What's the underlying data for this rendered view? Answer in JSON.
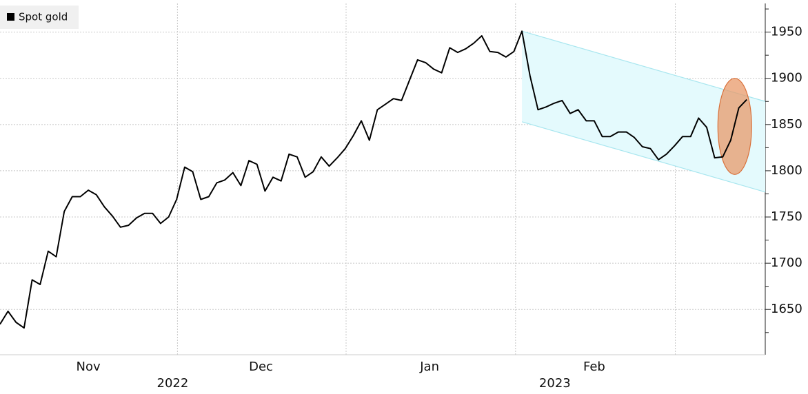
{
  "chart_data": {
    "type": "line",
    "legend": "Spot gold",
    "categories": [
      null,
      null,
      null,
      null,
      null,
      null,
      null,
      null,
      null,
      null,
      null,
      null,
      null,
      null,
      null,
      null,
      null,
      null,
      null,
      null,
      null,
      null,
      null,
      null,
      null,
      null,
      null,
      null,
      null,
      null,
      null,
      null,
      null,
      null,
      null,
      null,
      null,
      null,
      null,
      null,
      null,
      null,
      null,
      null,
      null,
      null,
      null,
      null,
      null,
      null,
      null,
      null,
      null,
      null,
      null,
      null,
      null,
      null,
      null,
      null,
      null,
      null,
      null,
      null,
      null,
      null,
      null,
      null,
      null,
      null,
      null,
      null,
      null,
      null,
      null,
      null,
      null,
      null,
      null,
      null,
      null,
      null,
      null,
      null,
      null,
      null,
      null,
      null,
      null,
      null,
      null,
      null,
      null,
      null
    ],
    "series": [
      {
        "name": "Spot gold",
        "color": "#000000",
        "values": [
          1634,
          1648,
          1636,
          1630,
          1682,
          1677,
          1713,
          1707,
          1756,
          1772,
          1772,
          1779,
          1774,
          1761,
          1751,
          1739,
          1741,
          1749,
          1754,
          1754,
          1743,
          1750,
          1769,
          1804,
          1799,
          1769,
          1772,
          1787,
          1790,
          1798,
          1784,
          1811,
          1807,
          1778,
          1793,
          1789,
          1818,
          1815,
          1793,
          1799,
          1815,
          1805,
          1814,
          1824,
          1838,
          1854,
          1833,
          1866,
          1872,
          1878,
          1876,
          1898,
          1920,
          1917,
          1910,
          1906,
          1933,
          1928,
          1932,
          1938,
          1946,
          1929,
          1928,
          1923,
          1929,
          1951,
          1903,
          1866,
          1869,
          1873,
          1876,
          1862,
          1866,
          1854,
          1854,
          1837,
          1837,
          1842,
          1842,
          1836,
          1826,
          1824,
          1812,
          1818,
          1827,
          1837,
          1837,
          1857,
          1847,
          1814,
          1815,
          1833,
          1868,
          1877
        ]
      }
    ],
    "xlim": [
      0,
      95.3
    ],
    "xticks": [
      {
        "value": 11,
        "label": "Nov"
      },
      {
        "value": 32.5,
        "label": "Dec"
      },
      {
        "value": 53.5,
        "label": "Jan"
      },
      {
        "value": 74,
        "label": "Feb"
      }
    ],
    "xgrid": [
      22.1,
      43.1,
      64.2,
      84.1
    ],
    "year_labels": [
      {
        "value": 21.5,
        "label": "2022"
      },
      {
        "value": 69.1,
        "label": "2023"
      }
    ],
    "ylim": [
      1601,
      1981
    ],
    "yticks": [
      1650,
      1700,
      1750,
      1800,
      1850,
      1900,
      1950
    ],
    "yminor_ticks": [
      1625,
      1675,
      1725,
      1775,
      1825,
      1875,
      1925,
      1975
    ],
    "grid": true,
    "channel": {
      "x": [
        65,
        95.3
      ],
      "upper": [
        1951,
        1875
      ],
      "lower": [
        1853,
        1777
      ],
      "color": "#e4fafd",
      "edge_color": "#a8e6ef"
    },
    "highlight": {
      "cx": 91.5,
      "cy": 1848,
      "rx": 2.1,
      "ry": 52,
      "color": "#e89a6a"
    }
  }
}
